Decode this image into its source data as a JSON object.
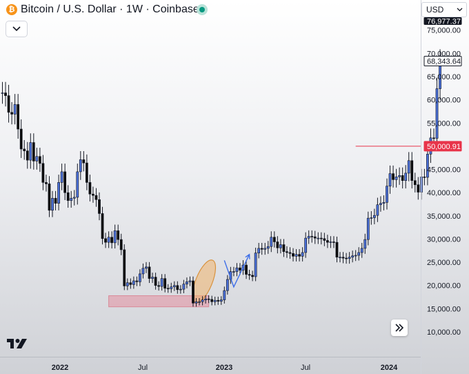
{
  "header": {
    "title": "Bitcoin / U.S. Dollar · 1W · Coinbase",
    "symbol_icon": "bitcoin-icon",
    "market_status_icon": "market-open-dot-icon",
    "status_color": "#089981"
  },
  "currency": {
    "selected": "USD"
  },
  "controls": {
    "collapse_icon": "chevron-down-icon",
    "scroll_icon": "double-chevron-right-icon"
  },
  "colors": {
    "up": "#4a6fd6",
    "down": "#0b0b0b",
    "marker": "#e8344a"
  },
  "chart_data": {
    "type": "candlestick",
    "timeframe": "1W",
    "x_axis": {
      "ticks": [
        "2022",
        "Jul",
        "2023",
        "Jul",
        "2024"
      ]
    },
    "y_axis": {
      "ticks": [
        "10,000.00",
        "15,000.00",
        "20,000.00",
        "25,000.00",
        "30,000.00",
        "35,000.00",
        "40,000.00",
        "45,000.00",
        "50,000.00",
        "55,000.00",
        "60,000.00",
        "65,000.00",
        "70,000.00",
        "75,000.00"
      ],
      "range": [
        5000,
        82000
      ]
    },
    "price_labels": [
      {
        "value": 76977.37,
        "text": "76,977.37",
        "style": "dark"
      },
      {
        "value": 68343.64,
        "text": "68,343.64",
        "style": "outline"
      },
      {
        "value": 50000.91,
        "text": "50,000.91",
        "style": "red"
      }
    ],
    "horizontal_line": {
      "price": 50000.91,
      "from": "2023-12-18"
    },
    "support_zone": {
      "from": "2022-06-13",
      "to": "2023-01-23",
      "low": 15400,
      "high": 17800
    },
    "highlight_ellipse": {
      "from": "2022-12-26",
      "to": "2023-01-30",
      "low": 16300,
      "high": 25500
    },
    "projection_arrow": [
      {
        "date": "2023-02-27",
        "price": 25400
      },
      {
        "date": "2023-03-20",
        "price": 19700
      },
      {
        "date": "2023-04-24",
        "price": 26700
      }
    ],
    "start_date": "2021-10-18",
    "period_days": 7,
    "closes": [
      61500,
      60900,
      57300,
      56900,
      59000,
      53700,
      49400,
      49000,
      47000,
      50800,
      46800,
      47800,
      46300,
      42200,
      41900,
      36200,
      38800,
      37700,
      42200,
      44500,
      40000,
      38300,
      38800,
      39000,
      44500,
      47100,
      46400,
      42200,
      39700,
      39400,
      38500,
      35500,
      30100,
      29300,
      30400,
      29200,
      31800,
      29900,
      27700,
      19900,
      20600,
      20200,
      21000,
      20800,
      22500,
      23700,
      24000,
      21500,
      21800,
      20000,
      19800,
      21500,
      19400,
      19300,
      19700,
      20000,
      19100,
      19200,
      20300,
      20800,
      21000,
      16200,
      16500,
      16500,
      16900,
      17100,
      17000,
      16500,
      16800,
      16600,
      16900,
      18900,
      21300,
      23000,
      23000,
      23800,
      23300,
      24400,
      22400,
      22200,
      21900,
      27000,
      28000,
      27800,
      28000,
      28400,
      30400,
      29400,
      28100,
      28800,
      27300,
      27100,
      26900,
      26300,
      26700,
      26300,
      27100,
      30200,
      30600,
      30500,
      30200,
      30200,
      30100,
      29700,
      29300,
      29400,
      29300,
      26100,
      26100,
      25900,
      25800,
      26100,
      26400,
      26500,
      27100,
      28000,
      29900,
      34500,
      34600,
      35100,
      37400,
      37700,
      37900,
      41400,
      44100,
      42800,
      43400,
      43700,
      42600,
      44200,
      46900,
      42600,
      41700,
      40100,
      43400,
      43300,
      48300,
      51800,
      51700,
      62400,
      68300
    ],
    "opens": [
      61500,
      61500,
      60900,
      57300,
      56900,
      59000,
      53700,
      49400,
      49000,
      47000,
      50800,
      46800,
      47800,
      46300,
      42200,
      41900,
      36200,
      38800,
      37700,
      42200,
      44500,
      40000,
      38300,
      38800,
      39000,
      44500,
      47100,
      46400,
      42200,
      39700,
      39400,
      38500,
      35500,
      30100,
      29300,
      30400,
      29200,
      31800,
      29900,
      27700,
      19900,
      20600,
      20200,
      21000,
      20800,
      22500,
      23700,
      24000,
      21500,
      21800,
      20000,
      19800,
      21500,
      19400,
      19300,
      19700,
      20000,
      19100,
      19200,
      20300,
      20800,
      21000,
      16200,
      16500,
      16500,
      16900,
      17100,
      17000,
      16500,
      16800,
      16600,
      16900,
      18900,
      21300,
      23000,
      23000,
      23800,
      23300,
      24400,
      22400,
      22200,
      21900,
      27000,
      28000,
      27800,
      28000,
      28400,
      30400,
      29400,
      28100,
      28800,
      27300,
      27100,
      26900,
      26300,
      26700,
      26300,
      27100,
      30200,
      30600,
      30500,
      30200,
      30200,
      30100,
      29700,
      29300,
      29400,
      29300,
      26100,
      26100,
      25900,
      25800,
      26100,
      26400,
      26500,
      27100,
      28000,
      29900,
      34500,
      34600,
      35100,
      37400,
      37700,
      37900,
      41400,
      44100,
      42800,
      43400,
      43700,
      42600,
      44200,
      46900,
      42600,
      41700,
      40100,
      43400,
      43300,
      48300,
      51800,
      51700,
      62400
    ]
  }
}
